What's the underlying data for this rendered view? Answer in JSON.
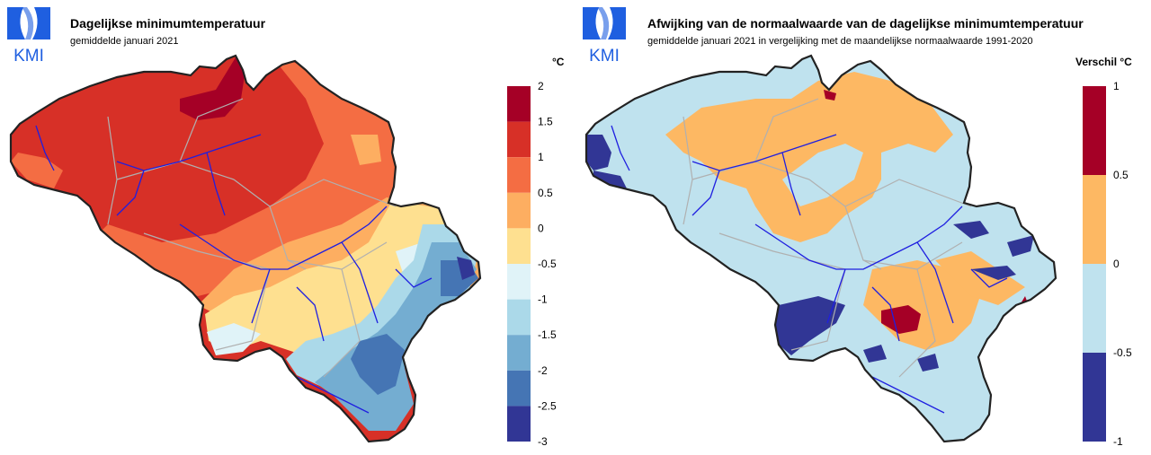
{
  "left": {
    "logo_text": "KMI",
    "title": "Dagelijkse minimumtemperatuur",
    "subtitle": "gemiddelde januari 2021",
    "unit": "°C",
    "legend": {
      "labels": [
        "2",
        "1.5",
        "1",
        "0.5",
        "0",
        "-0.5",
        "-1",
        "-1.5",
        "-2",
        "-2.5",
        "-3"
      ],
      "colors": [
        "#a50026",
        "#d73027",
        "#f46d43",
        "#fdae61",
        "#fee090",
        "#e0f3f8",
        "#abd9e9",
        "#74add1",
        "#4575b4",
        "#313695"
      ]
    }
  },
  "right": {
    "logo_text": "KMI",
    "title": "Afwijking van de normaalwaarde van de dagelijkse minimumtemperatuur",
    "subtitle": "gemiddelde januari 2021 in vergelijking met de maandelijkse normaalwaarde 1991-2020",
    "unit": "Verschil °C",
    "legend": {
      "labels": [
        "1",
        "0.5",
        "0",
        "-0.5",
        "-1"
      ],
      "colors": [
        "#a50026",
        "#fdb863",
        "#bfe2ee",
        "#313695"
      ]
    }
  },
  "colors": {
    "border": "#222222",
    "rivers": "#1f1fe0",
    "provinces": "#b0b0b0",
    "logo": "#1f5fe0"
  }
}
